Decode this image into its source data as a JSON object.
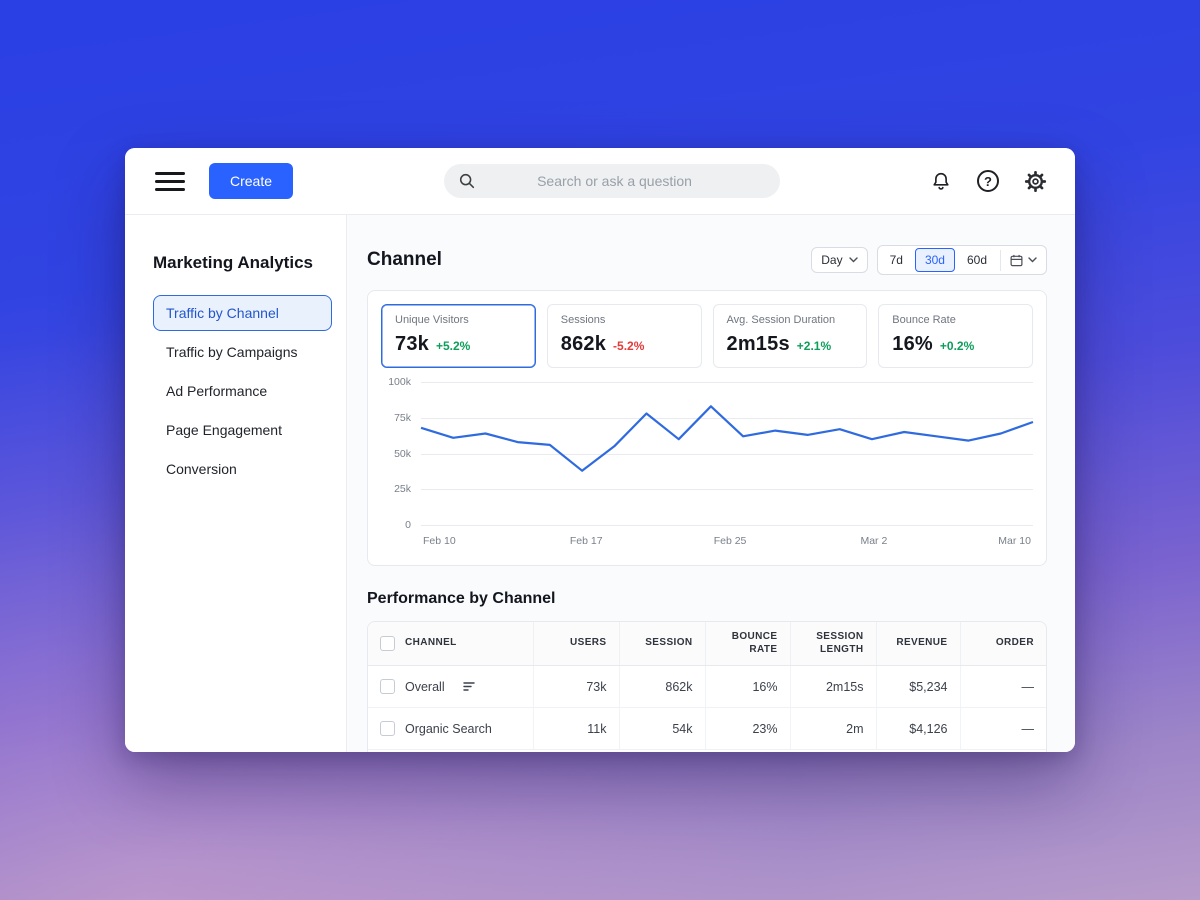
{
  "topbar": {
    "create_label": "Create",
    "search_placeholder": "Search or ask a question",
    "help_glyph": "?"
  },
  "sidebar": {
    "title": "Marketing Analytics",
    "items": [
      {
        "label": "Traffic by Channel",
        "active": true
      },
      {
        "label": "Traffic by Campaigns",
        "active": false
      },
      {
        "label": "Ad Performance",
        "active": false
      },
      {
        "label": "Page Engagement",
        "active": false
      },
      {
        "label": "Conversion",
        "active": false
      }
    ]
  },
  "content": {
    "title": "Channel",
    "controls": {
      "granularity": "Day",
      "ranges": [
        "7d",
        "30d",
        "60d"
      ],
      "active_range": "30d"
    },
    "stats": [
      {
        "label": "Unique Visitors",
        "value": "73k",
        "delta": "+5.2%",
        "direction": "up",
        "selected": true
      },
      {
        "label": "Sessions",
        "value": "862k",
        "delta": "-5.2%",
        "direction": "down",
        "selected": false
      },
      {
        "label": "Avg. Session Duration",
        "value": "2m15s",
        "delta": "+2.1%",
        "direction": "up",
        "selected": false
      },
      {
        "label": "Bounce Rate",
        "value": "16%",
        "delta": "+0.2%",
        "direction": "up",
        "selected": false
      }
    ],
    "table": {
      "title": "Performance by Channel",
      "columns": [
        "Channel",
        "Users",
        "Session",
        "Bounce Rate",
        "Session Length",
        "Revenue",
        "Order"
      ],
      "rows": [
        {
          "channel": "Overall",
          "users": "73k",
          "session": "862k",
          "bounce_rate": "16%",
          "session_length": "2m15s",
          "revenue": "$5,234",
          "order": "—",
          "sort_icon": true
        },
        {
          "channel": "Organic Search",
          "users": "11k",
          "session": "54k",
          "bounce_rate": "23%",
          "session_length": "2m",
          "revenue": "$4,126",
          "order": "—",
          "sort_icon": false
        }
      ]
    }
  },
  "chart_data": {
    "type": "line",
    "title": "Unique Visitors over time",
    "x_tick_labels": [
      "Feb 10",
      "Feb 17",
      "Feb 25",
      "Mar 2",
      "Mar 10"
    ],
    "x_tick_positions_pct": [
      3,
      27,
      50.5,
      74,
      97
    ],
    "y_tick_labels": [
      "100k",
      "75k",
      "50k",
      "25k",
      "0"
    ],
    "ylim": [
      0,
      100
    ],
    "grid": true,
    "series": [
      {
        "name": "Unique Visitors",
        "color": "#2f6bdf",
        "values_k": [
          68,
          61,
          64,
          58,
          56,
          38,
          55,
          78,
          60,
          83,
          62,
          66,
          63,
          67,
          60,
          65,
          62,
          59,
          64,
          72
        ]
      }
    ]
  },
  "colors": {
    "accent": "#2962ff",
    "chart_line": "#2f6bdf",
    "positive": "#0d9e5a",
    "negative": "#e23b3b"
  }
}
